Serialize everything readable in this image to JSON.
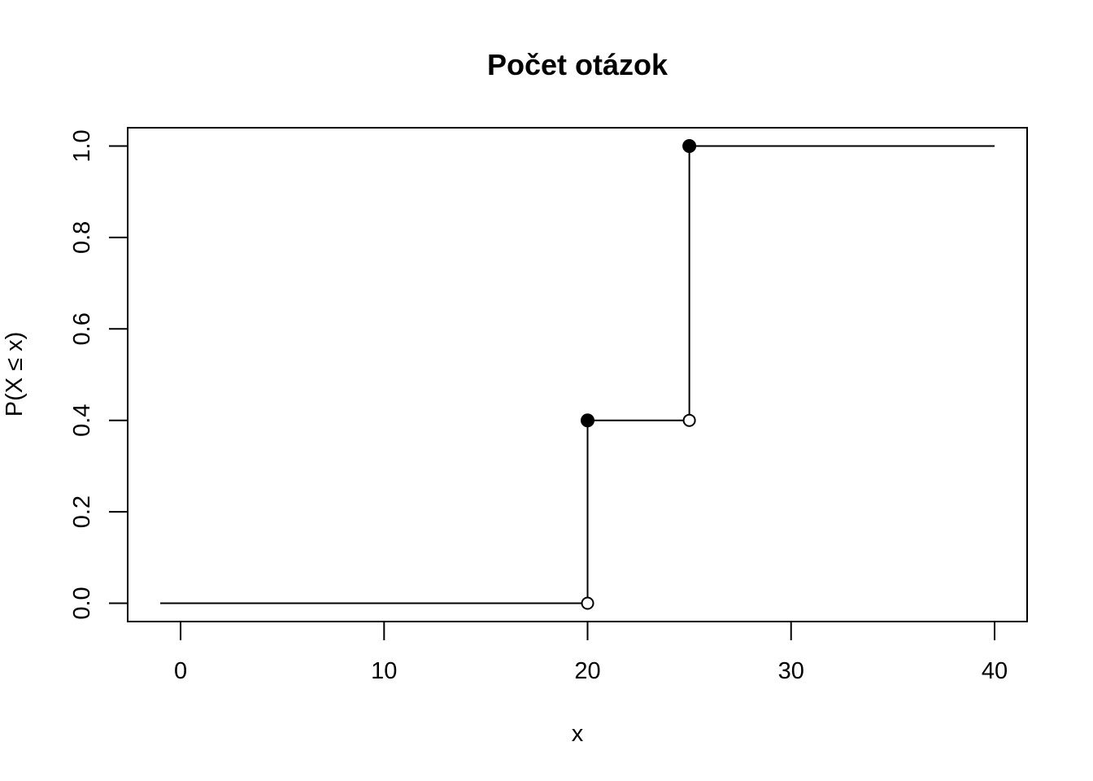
{
  "chart_data": {
    "type": "line",
    "step": true,
    "title": "Počet otázok",
    "xlabel": "x",
    "ylabel": "P(X ≤ x)",
    "xlim": [
      -2.6,
      41.6
    ],
    "ylim": [
      -0.04,
      1.04
    ],
    "x_ticks": [
      0,
      10,
      20,
      30,
      40
    ],
    "y_ticks": [
      0.0,
      0.2,
      0.4,
      0.6,
      0.8,
      1.0
    ],
    "x_tick_labels": [
      "0",
      "10",
      "20",
      "30",
      "40"
    ],
    "y_tick_labels": [
      "0.0",
      "0.2",
      "0.4",
      "0.6",
      "0.8",
      "1.0"
    ],
    "grid": false,
    "color": "#000000",
    "segments": [
      {
        "x_start": -1,
        "x_end": 20,
        "y": 0.0
      },
      {
        "x_start": 20,
        "x_end": 25,
        "y": 0.4
      },
      {
        "x_start": 25,
        "x_end": 40,
        "y": 1.0
      }
    ],
    "jumps": [
      {
        "x": 20,
        "from": 0.0,
        "to": 0.4
      },
      {
        "x": 25,
        "from": 0.4,
        "to": 1.0
      }
    ],
    "closed_points": [
      {
        "x": 20,
        "y": 0.4
      },
      {
        "x": 25,
        "y": 1.0
      }
    ],
    "open_points": [
      {
        "x": 20,
        "y": 0.0
      },
      {
        "x": 25,
        "y": 0.4
      }
    ]
  }
}
